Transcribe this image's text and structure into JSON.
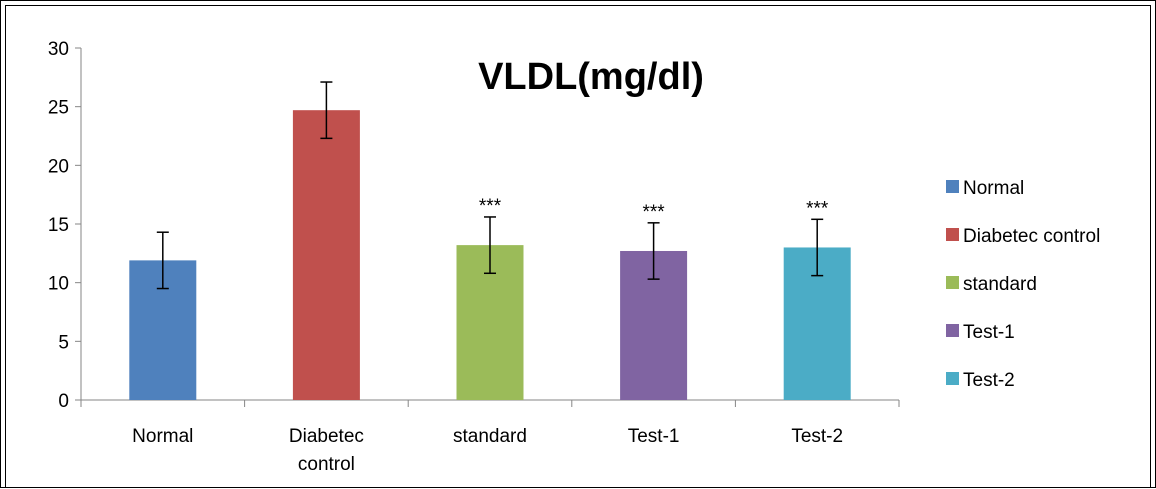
{
  "chart_data": {
    "type": "bar",
    "title": "VLDL(mg/dl)",
    "categories": [
      [
        "Normal"
      ],
      [
        "Diabetec",
        "control"
      ],
      [
        "standard"
      ],
      [
        "Test-1"
      ],
      [
        "Test-2"
      ]
    ],
    "values": [
      11.9,
      24.7,
      13.2,
      12.7,
      13.0
    ],
    "errors": [
      2.4,
      2.4,
      2.4,
      2.4,
      2.4
    ],
    "annotations": [
      "",
      "",
      "***",
      "***",
      "***"
    ],
    "colors": [
      "#4F81BD",
      "#C0504D",
      "#9BBB59",
      "#8064A2",
      "#4BACC6"
    ],
    "ylim": [
      0,
      30
    ],
    "yticks": [
      0,
      5,
      10,
      15,
      20,
      25,
      30
    ],
    "legend": {
      "placement": "right",
      "entries": [
        "Normal",
        "Diabetec control",
        "standard",
        "Test-1",
        "Test-2"
      ]
    },
    "grid": false
  }
}
